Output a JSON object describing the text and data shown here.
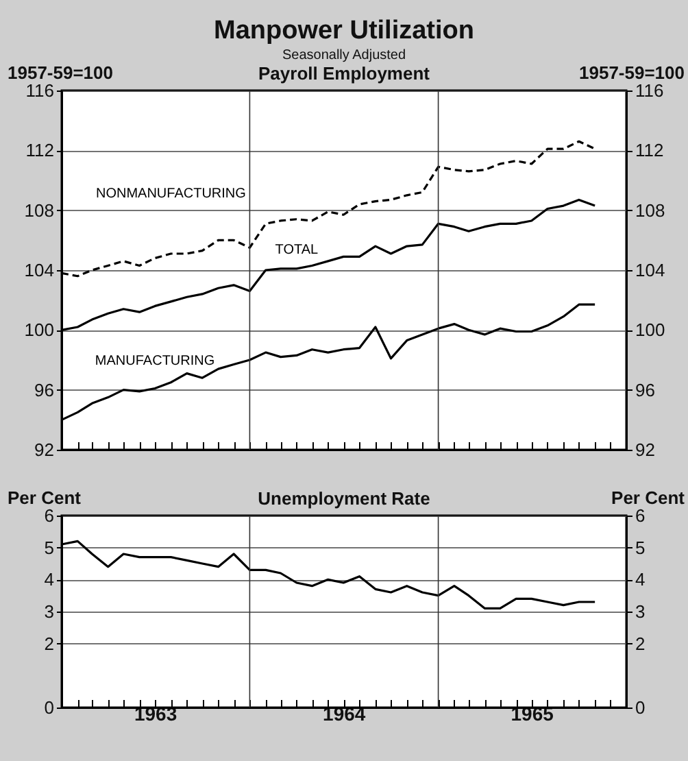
{
  "chart_data": [
    {
      "type": "line",
      "title": "Manpower Utilization",
      "subtitle": "Seasonally Adjusted",
      "annotations": [
        "Payroll Employment"
      ],
      "ylabel": "1957-59=100",
      "y2label": "1957-59=100",
      "x": [
        "1963-01",
        "1963-02",
        "1963-03",
        "1963-04",
        "1963-05",
        "1963-06",
        "1963-07",
        "1963-08",
        "1963-09",
        "1963-10",
        "1963-11",
        "1963-12",
        "1964-01",
        "1964-02",
        "1964-03",
        "1964-04",
        "1964-05",
        "1964-06",
        "1964-07",
        "1964-08",
        "1964-09",
        "1964-10",
        "1964-11",
        "1964-12",
        "1965-01",
        "1965-02",
        "1965-03",
        "1965-04",
        "1965-05",
        "1965-06",
        "1965-07",
        "1965-08",
        "1965-09",
        "1965-10",
        "1965-11"
      ],
      "series": [
        {
          "name": "NONMANUFACTURING",
          "color": "#000000",
          "line_style": "dashed",
          "values": [
            103.8,
            103.6,
            104.0,
            104.3,
            104.6,
            104.3,
            104.8,
            105.1,
            105.1,
            105.3,
            106.0,
            106.0,
            105.5,
            107.1,
            107.3,
            107.4,
            107.3,
            107.9,
            107.7,
            108.4,
            108.6,
            108.7,
            109.0,
            109.2,
            110.9,
            110.7,
            110.6,
            110.7,
            111.1,
            111.3,
            111.1,
            112.1,
            112.1,
            112.6,
            112.1
          ]
        },
        {
          "name": "TOTAL",
          "color": "#000000",
          "values": [
            100.0,
            100.2,
            100.7,
            101.1,
            101.4,
            101.2,
            101.6,
            101.9,
            102.2,
            102.4,
            102.8,
            103.0,
            102.6,
            104.0,
            104.1,
            104.1,
            104.3,
            104.6,
            104.9,
            104.9,
            105.6,
            105.1,
            105.6,
            105.7,
            107.1,
            106.9,
            106.6,
            106.9,
            107.1,
            107.1,
            107.3,
            108.1,
            108.3,
            108.7,
            108.3
          ]
        },
        {
          "name": "MANUFACTURING",
          "color": "#000000",
          "values": [
            94.0,
            94.5,
            95.1,
            95.5,
            96.0,
            95.9,
            96.1,
            96.5,
            97.1,
            96.8,
            97.4,
            97.7,
            98.0,
            98.5,
            98.2,
            98.3,
            98.7,
            98.5,
            98.7,
            98.8,
            100.2,
            98.1,
            99.3,
            99.7,
            100.1,
            100.4,
            100.0,
            99.7,
            100.1,
            99.9,
            99.9,
            100.3,
            100.9,
            101.7,
            101.7
          ]
        }
      ],
      "xlim": [
        "1963-01",
        "1966-01"
      ],
      "xticks": [
        {
          "value": "1963-01",
          "label": null
        },
        {
          "value": "1963-02",
          "label": null
        },
        {
          "value": "1963-03",
          "label": null
        },
        {
          "value": "1963-04",
          "label": null
        },
        {
          "value": "1963-05",
          "label": null
        },
        {
          "value": "1963-06",
          "label": null
        },
        {
          "value": "1963-07",
          "label": null
        },
        {
          "value": "1963-08",
          "label": null
        },
        {
          "value": "1963-09",
          "label": null
        },
        {
          "value": "1963-10",
          "label": null
        },
        {
          "value": "1963-11",
          "label": null
        },
        {
          "value": "1963-12",
          "label": null
        },
        {
          "value": "1964-01",
          "label": null
        },
        {
          "value": "1964-02",
          "label": null
        },
        {
          "value": "1964-03",
          "label": null
        },
        {
          "value": "1964-04",
          "label": null
        },
        {
          "value": "1964-05",
          "label": null
        },
        {
          "value": "1964-06",
          "label": null
        },
        {
          "value": "1964-07",
          "label": null
        },
        {
          "value": "1964-08",
          "label": null
        },
        {
          "value": "1964-09",
          "label": null
        },
        {
          "value": "1964-10",
          "label": null
        },
        {
          "value": "1964-11",
          "label": null
        },
        {
          "value": "1964-12",
          "label": null
        },
        {
          "value": "1965-01",
          "label": null
        },
        {
          "value": "1965-02",
          "label": null
        },
        {
          "value": "1965-03",
          "label": null
        },
        {
          "value": "1965-04",
          "label": null
        },
        {
          "value": "1965-05",
          "label": null
        },
        {
          "value": "1965-06",
          "label": null
        },
        {
          "value": "1965-07",
          "label": null
        },
        {
          "value": "1965-08",
          "label": null
        },
        {
          "value": "1965-09",
          "label": null
        },
        {
          "value": "1965-10",
          "label": null
        },
        {
          "value": "1965-11",
          "label": null
        },
        {
          "value": "1965-12",
          "label": null
        },
        {
          "value": "1966-01",
          "label": null
        }
      ],
      "ylim": [
        92,
        116
      ],
      "yticks": [
        92,
        96,
        100,
        104,
        108,
        112,
        116
      ],
      "y2lim": [
        92,
        116
      ],
      "y2ticks": [
        92,
        96,
        100,
        104,
        108,
        112,
        116
      ],
      "ref_lines": [
        {
          "axis": "x",
          "value": "1964-01"
        },
        {
          "axis": "x",
          "value": "1965-01"
        }
      ],
      "grid": "y",
      "legend": false,
      "tick_labels": "y"
    },
    {
      "type": "line",
      "title": "Unemployment Rate",
      "ylabel": "Per Cent",
      "y2label": "Per Cent",
      "x": [
        "1963-01",
        "1963-02",
        "1963-03",
        "1963-04",
        "1963-05",
        "1963-06",
        "1963-07",
        "1963-08",
        "1963-09",
        "1963-10",
        "1963-11",
        "1963-12",
        "1964-01",
        "1964-02",
        "1964-03",
        "1964-04",
        "1964-05",
        "1964-06",
        "1964-07",
        "1964-08",
        "1964-09",
        "1964-10",
        "1964-11",
        "1964-12",
        "1965-01",
        "1965-02",
        "1965-03",
        "1965-04",
        "1965-05",
        "1965-06",
        "1965-07",
        "1965-08",
        "1965-09",
        "1965-10",
        "1965-11"
      ],
      "series": [
        {
          "color": "#000000",
          "values": [
            5.1,
            5.2,
            4.8,
            4.4,
            4.8,
            4.7,
            4.7,
            4.7,
            4.6,
            4.5,
            4.4,
            4.8,
            4.3,
            4.3,
            4.2,
            3.9,
            3.8,
            4.0,
            3.9,
            4.1,
            3.7,
            3.6,
            3.8,
            3.6,
            3.5,
            3.8,
            3.5,
            3.1,
            3.1,
            3.4,
            3.4,
            3.3,
            3.2,
            3.3,
            3.3
          ]
        }
      ],
      "xlim": [
        "1963-01",
        "1966-01"
      ],
      "xticks": [
        {
          "value": "1963-01",
          "label": null
        },
        {
          "value": "1963-02",
          "label": null
        },
        {
          "value": "1963-03",
          "label": null
        },
        {
          "value": "1963-04",
          "label": null
        },
        {
          "value": "1963-05",
          "label": null
        },
        {
          "value": "1963-06",
          "label": null
        },
        {
          "value": "1963-07",
          "label": "1963"
        },
        {
          "value": "1963-08",
          "label": null
        },
        {
          "value": "1963-09",
          "label": null
        },
        {
          "value": "1963-10",
          "label": null
        },
        {
          "value": "1963-11",
          "label": null
        },
        {
          "value": "1963-12",
          "label": null
        },
        {
          "value": "1964-01",
          "label": null
        },
        {
          "value": "1964-02",
          "label": null
        },
        {
          "value": "1964-03",
          "label": null
        },
        {
          "value": "1964-04",
          "label": null
        },
        {
          "value": "1964-05",
          "label": null
        },
        {
          "value": "1964-06",
          "label": null
        },
        {
          "value": "1964-07",
          "label": "1964"
        },
        {
          "value": "1964-08",
          "label": null
        },
        {
          "value": "1964-09",
          "label": null
        },
        {
          "value": "1964-10",
          "label": null
        },
        {
          "value": "1964-11",
          "label": null
        },
        {
          "value": "1964-12",
          "label": null
        },
        {
          "value": "1965-01",
          "label": null
        },
        {
          "value": "1965-02",
          "label": null
        },
        {
          "value": "1965-03",
          "label": null
        },
        {
          "value": "1965-04",
          "label": null
        },
        {
          "value": "1965-05",
          "label": null
        },
        {
          "value": "1965-06",
          "label": null
        },
        {
          "value": "1965-07",
          "label": "1965"
        },
        {
          "value": "1965-08",
          "label": null
        },
        {
          "value": "1965-09",
          "label": null
        },
        {
          "value": "1965-10",
          "label": null
        },
        {
          "value": "1965-11",
          "label": null
        },
        {
          "value": "1965-12",
          "label": null
        },
        {
          "value": "1966-01",
          "label": null
        }
      ],
      "ylim": [
        0,
        6
      ],
      "yticks": [
        0,
        2,
        3,
        4,
        5,
        6
      ],
      "y2lim": [
        0,
        6
      ],
      "y2ticks": [
        0,
        2,
        3,
        4,
        5,
        6
      ],
      "ref_lines": [
        {
          "axis": "x",
          "value": "1964-01"
        },
        {
          "axis": "x",
          "value": "1965-01"
        }
      ],
      "grid": "y",
      "legend": false
    }
  ]
}
